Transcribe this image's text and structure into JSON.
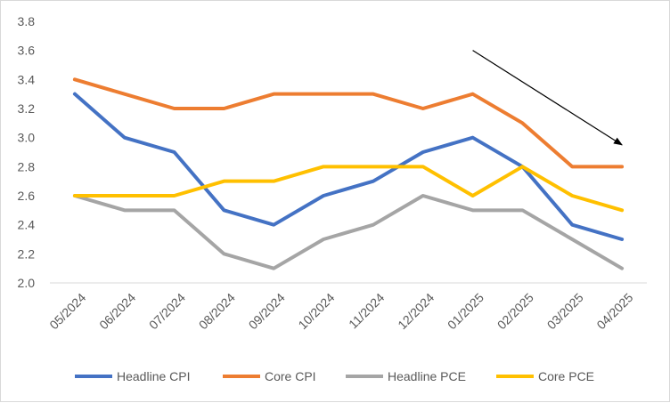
{
  "chart_data": {
    "type": "line",
    "title": "",
    "xlabel": "",
    "ylabel": "",
    "categories": [
      "05/2024",
      "06/2024",
      "07/2024",
      "08/2024",
      "09/2024",
      "10/2024",
      "11/2024",
      "12/2024",
      "01/2025",
      "02/2025",
      "03/2025",
      "04/2025"
    ],
    "ylim": [
      2.0,
      3.8
    ],
    "yticks": [
      "2.0",
      "2.2",
      "2.4",
      "2.6",
      "2.8",
      "3.0",
      "3.2",
      "3.4",
      "3.6",
      "3.8"
    ],
    "grid": false,
    "legend": "bottom",
    "series": [
      {
        "name": "Headline CPI",
        "color": "#4472C4",
        "values": [
          3.3,
          3.0,
          2.9,
          2.5,
          2.4,
          2.6,
          2.7,
          2.9,
          3.0,
          2.8,
          2.4,
          2.3
        ]
      },
      {
        "name": "Core CPI",
        "color": "#ED7D31",
        "values": [
          3.4,
          3.3,
          3.2,
          3.2,
          3.3,
          3.3,
          3.3,
          3.2,
          3.3,
          3.1,
          2.8,
          2.8
        ]
      },
      {
        "name": "Headline PCE",
        "color": "#A5A5A5",
        "values": [
          2.6,
          2.5,
          2.5,
          2.2,
          2.1,
          2.3,
          2.4,
          2.6,
          2.5,
          2.5,
          2.3,
          2.1
        ]
      },
      {
        "name": "Core PCE",
        "color": "#FFC000",
        "values": [
          2.6,
          2.6,
          2.6,
          2.7,
          2.7,
          2.8,
          2.8,
          2.8,
          2.6,
          2.8,
          2.6,
          2.5
        ]
      }
    ],
    "annotations": [
      {
        "type": "arrow",
        "description": "downward trend arrow",
        "from": {
          "x": "01/2025",
          "y": 3.6
        },
        "to": {
          "x": "04/2025",
          "y": 2.95
        }
      }
    ]
  }
}
